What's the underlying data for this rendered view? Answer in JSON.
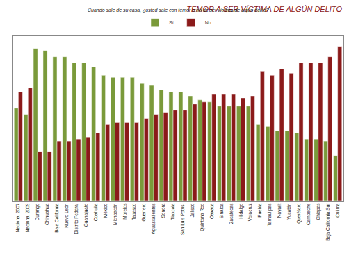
{
  "chart_data": {
    "type": "bar",
    "title": "TEMOR A SER VÍCTIMA DE ALGÚN DELITO",
    "subtitle": "Cuando sale de su casa, ¿usted sale con temor o no de ser víctima de algún delito?",
    "categories": [
      "Nacional 2007",
      "Nacional 2009",
      "Durango",
      "Chihuahua",
      "Baja California",
      "Nuevo León",
      "Distrito Federal",
      "Guanajuato",
      "Coahuila",
      "México",
      "Michoacán",
      "Morelos",
      "Tabasco",
      "Guerrero",
      "Aguascalientes",
      "Sonora",
      "Tlaxcala",
      "San Luis Potosí",
      "Jalisco",
      "Quintana Roo",
      "Oaxaca",
      "Sinaloa",
      "Zacatecas",
      "Hidalgo",
      "Veracruz",
      "Puebla",
      "Tamaulipas",
      "Nayarit",
      "Yucatán",
      "Querétaro",
      "Campeche",
      "Chiapas",
      "Baja California Sur",
      "Colima"
    ],
    "series": [
      {
        "name": "Sí",
        "color": "#7a9a3a",
        "values": [
          45,
          42,
          74,
          73,
          70,
          70,
          67,
          67,
          65,
          61,
          60,
          60,
          60,
          57,
          56,
          54,
          53,
          53,
          51,
          49,
          48,
          46,
          46,
          46,
          46,
          37,
          36,
          34,
          34,
          33,
          30,
          30,
          29,
          22
        ]
      },
      {
        "name": "No",
        "color": "#8b1a1a",
        "values": [
          53,
          55,
          24,
          24,
          29,
          29,
          30,
          31,
          33,
          37,
          38,
          38,
          38,
          40,
          42,
          43,
          44,
          44,
          47,
          48,
          52,
          52,
          52,
          50,
          51,
          63,
          61,
          64,
          62,
          67,
          67,
          67,
          70,
          75
        ]
      }
    ],
    "ylim": [
      0,
      80
    ],
    "yticks": [],
    "tick_labels": "x",
    "data_labels": true,
    "legend": "top",
    "grid": false
  }
}
